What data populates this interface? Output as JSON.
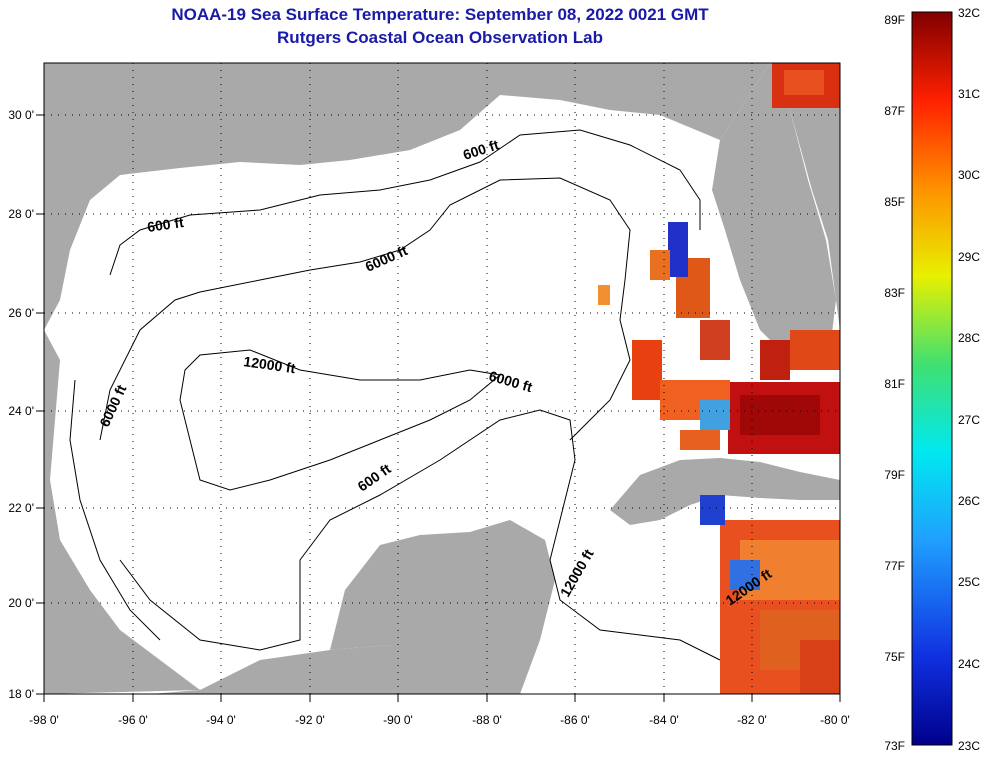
{
  "title": {
    "line1": "NOAA-19 Sea Surface Temperature:  September 08, 2022 0021 GMT",
    "line2": "Rutgers Coastal Ocean Observation Lab"
  },
  "map": {
    "lon_ticks": [
      "-98 0'",
      "-96 0'",
      "-94 0'",
      "-92 0'",
      "-90 0'",
      "-88 0'",
      "-86 0'",
      "-84 0'",
      "-82 0'",
      "-80 0'"
    ],
    "lat_ticks": [
      "30 0'",
      "28 0'",
      "26 0'",
      "24 0'",
      "22 0'",
      "20 0'",
      "18 0'"
    ],
    "contour_labels": [
      "600 ft",
      "600 ft",
      "6000 ft",
      "12000 ft",
      "6000 ft",
      "6000 ft",
      "600 ft",
      "12000 ft",
      "12000 ft"
    ]
  },
  "colorbar": {
    "fahrenheit": [
      "89F",
      "87F",
      "85F",
      "83F",
      "81F",
      "79F",
      "77F",
      "75F",
      "73F"
    ],
    "celsius": [
      "32C",
      "31C",
      "30C",
      "29C",
      "28C",
      "27C",
      "26C",
      "25C",
      "24C",
      "23C"
    ]
  },
  "colors": {
    "land": "#a9a9a9",
    "title": "#1a1aa8",
    "warm": "#e03010",
    "hot": "#b00000",
    "cold": "#1a2ad0"
  }
}
